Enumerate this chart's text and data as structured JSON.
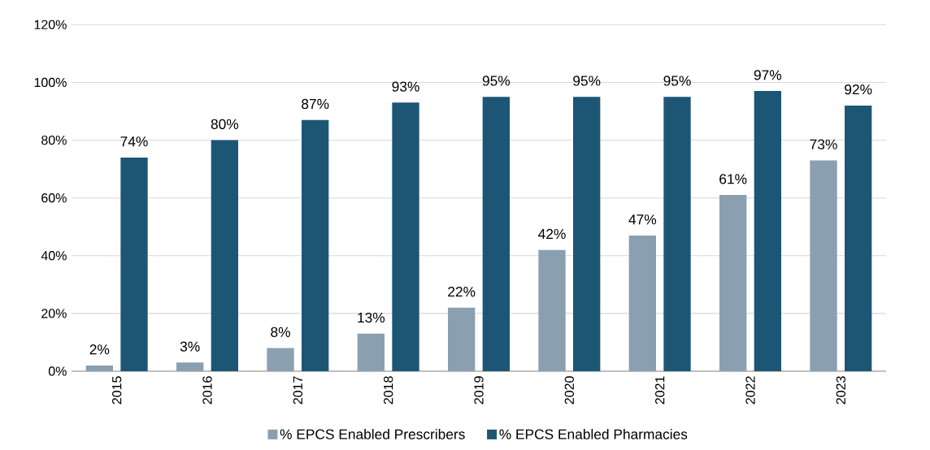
{
  "chart_data": {
    "type": "bar",
    "categories": [
      "2015",
      "2016",
      "2017",
      "2018",
      "2019",
      "2020",
      "2021",
      "2022",
      "2023"
    ],
    "series": [
      {
        "name": "% EPCS Enabled Prescribers",
        "color": "#8a9fb0",
        "values": [
          2,
          3,
          8,
          13,
          22,
          42,
          47,
          61,
          73
        ],
        "value_labels": [
          "2%",
          "3%",
          "8%",
          "13%",
          "22%",
          "42%",
          "47%",
          "61%",
          "73%"
        ]
      },
      {
        "name": "% EPCS Enabled Pharmacies",
        "color": "#1d5675",
        "values": [
          74,
          80,
          87,
          93,
          95,
          95,
          95,
          97,
          92
        ],
        "value_labels": [
          "74%",
          "80%",
          "87%",
          "93%",
          "95%",
          "95%",
          "95%",
          "97%",
          "92%"
        ]
      }
    ],
    "ylim": [
      0,
      120
    ],
    "yticks": [
      {
        "value": 0,
        "label": "0%"
      },
      {
        "value": 20,
        "label": "20%"
      },
      {
        "value": 40,
        "label": "40%"
      },
      {
        "value": 60,
        "label": "60%"
      },
      {
        "value": 80,
        "label": "80%"
      },
      {
        "value": 100,
        "label": "100%"
      },
      {
        "value": 120,
        "label": "120%"
      }
    ],
    "grid": "y",
    "legend": "bottom"
  }
}
